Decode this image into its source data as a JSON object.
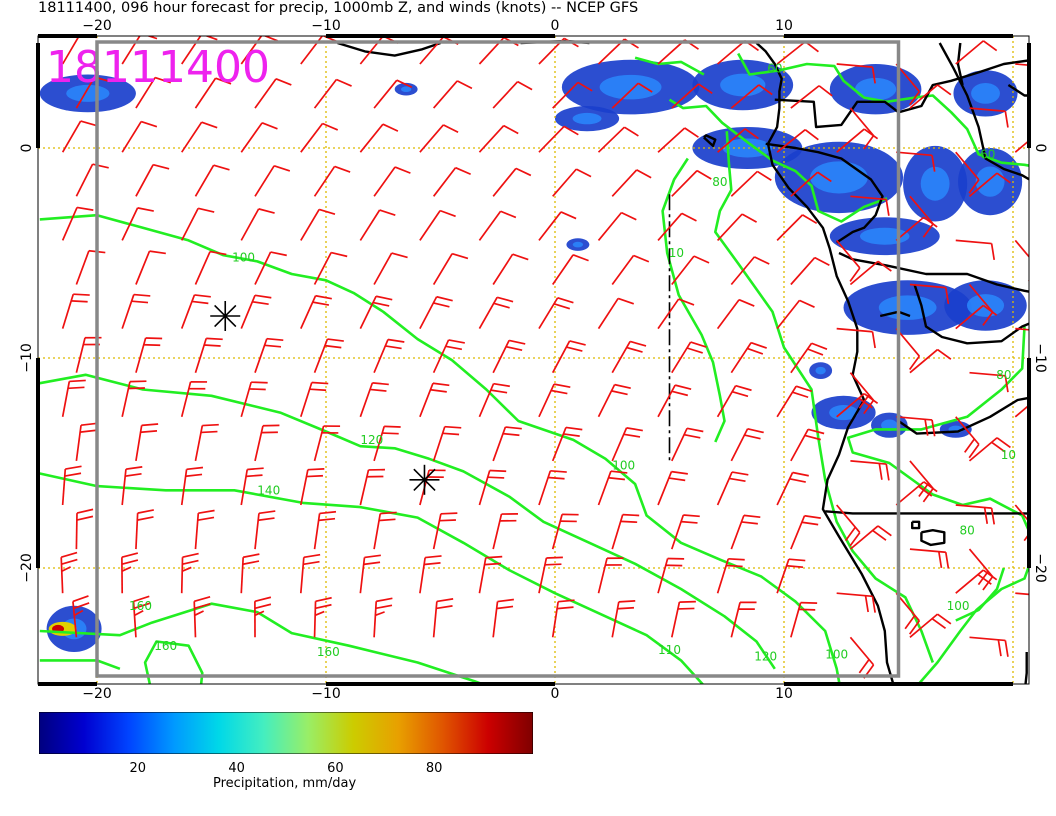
{
  "title": "18111400, 096 hour forecast for precip, 1000mb Z, and winds (knots) -- NCEP GFS",
  "stamp": "18111400",
  "x_ticks": [
    {
      "lon": -20,
      "label": "−20"
    },
    {
      "lon": -10,
      "label": "−10"
    },
    {
      "lon": 0,
      "label": "0"
    },
    {
      "lon": 10,
      "label": "10"
    }
  ],
  "y_ticks": [
    {
      "lat": 0,
      "label": "0"
    },
    {
      "lat": -10,
      "label": "−10"
    },
    {
      "lat": -20,
      "label": "−20"
    }
  ],
  "contour_labels": [
    {
      "text": "100",
      "lon": -13.6,
      "lat": -5.4
    },
    {
      "text": "120",
      "lon": -8.0,
      "lat": -14.1
    },
    {
      "text": "140",
      "lon": -12.5,
      "lat": -16.5
    },
    {
      "text": "160",
      "lon": -17.0,
      "lat": -23.9
    },
    {
      "text": "160",
      "lon": -9.9,
      "lat": -24.2
    },
    {
      "text": "160",
      "lon": -18.1,
      "lat": -22.0
    },
    {
      "text": "100",
      "lon": 3.0,
      "lat": -15.3
    },
    {
      "text": "110",
      "lon": 5.0,
      "lat": -24.1
    },
    {
      "text": "120",
      "lon": 9.2,
      "lat": -24.4
    },
    {
      "text": "100",
      "lon": 12.3,
      "lat": -24.3
    },
    {
      "text": "100",
      "lon": 17.6,
      "lat": -22.0
    },
    {
      "text": "80",
      "lon": 18.0,
      "lat": -18.4
    },
    {
      "text": "80",
      "lon": 7.2,
      "lat": -1.8
    },
    {
      "text": "80",
      "lon": 19.6,
      "lat": -11.0
    },
    {
      "text": "10",
      "lon": 19.8,
      "lat": -14.8
    },
    {
      "text": "10",
      "lon": 5.3,
      "lat": -5.2
    },
    {
      "text": "60",
      "lon": 9.6,
      "lat": 3.6
    },
    {
      "text": "60",
      "lon": 18.9,
      "lat": -0.5
    }
  ],
  "lows": [
    {
      "lon": -14.4,
      "lat": -8.0
    },
    {
      "lon": -5.7,
      "lat": -15.8
    }
  ],
  "colorbar": {
    "label": "Precipitation, mm/day",
    "min": 0,
    "max": 100,
    "ticks": [
      20,
      40,
      60,
      80
    ],
    "colors": [
      "#00007f",
      "#0000d0",
      "#0044ff",
      "#0099ff",
      "#00d8e8",
      "#44eec0",
      "#99ee66",
      "#cccc00",
      "#e8a000",
      "#e05500",
      "#cc0000",
      "#7f0000"
    ]
  },
  "colors": {
    "contour": "#22ee22",
    "barb": "#ee1111",
    "coast": "#000000",
    "grid": "#ddbb00",
    "frame": "#888888"
  }
}
